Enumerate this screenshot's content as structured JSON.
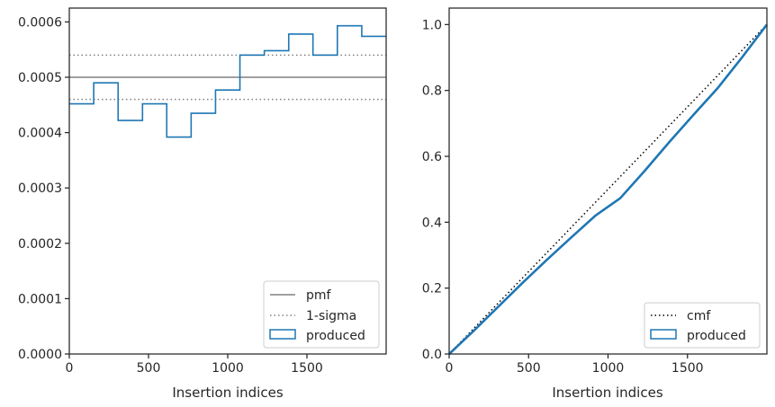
{
  "chart_data": [
    {
      "type": "line",
      "xlabel": "Insertion indices",
      "ylabel": "",
      "xlim": [
        0,
        2000
      ],
      "ylim": [
        0,
        0.000625
      ],
      "xticks": [
        0,
        500,
        1000,
        1500
      ],
      "xtick_labels": [
        "0",
        "500",
        "1000",
        "1500"
      ],
      "yticks": [
        0,
        0.0001,
        0.0002,
        0.0003,
        0.0004,
        0.0005,
        0.0006
      ],
      "ytick_labels": [
        "0.0000",
        "0.0001",
        "0.0002",
        "0.0003",
        "0.0004",
        "0.0005",
        "0.0006"
      ],
      "grid": false,
      "legend_position": "bottom-right",
      "pmf": 0.0005,
      "sigma_lines": [
        0.00046,
        0.00054
      ],
      "histogram": {
        "name": "produced",
        "bin_edges": [
          0,
          154,
          308,
          462,
          615,
          769,
          923,
          1077,
          1231,
          1385,
          1538,
          1692,
          1846,
          2000
        ],
        "values": [
          0.000452,
          0.00049,
          0.000422,
          0.000452,
          0.000392,
          0.000435,
          0.000477,
          0.00054,
          0.000548,
          0.000578,
          0.00054,
          0.000593,
          0.000574
        ]
      },
      "series": [
        {
          "name": "pmf",
          "style": "solid",
          "color": "#808080"
        },
        {
          "name": "1-sigma",
          "style": "dotted",
          "color": "#808080"
        },
        {
          "name": "produced",
          "style": "step",
          "color": "#1f77b4"
        }
      ]
    },
    {
      "type": "line",
      "xlabel": "Insertion indices",
      "ylabel": "",
      "xlim": [
        0,
        2000
      ],
      "ylim": [
        0,
        1.05
      ],
      "xticks": [
        0,
        500,
        1000,
        1500
      ],
      "xtick_labels": [
        "0",
        "500",
        "1000",
        "1500"
      ],
      "yticks": [
        0,
        0.2,
        0.4,
        0.6,
        0.8,
        1.0
      ],
      "ytick_labels": [
        "0.0",
        "0.2",
        "0.4",
        "0.6",
        "0.8",
        "1.0"
      ],
      "grid": false,
      "legend_position": "bottom-right",
      "series": [
        {
          "name": "cmf",
          "style": "dotted",
          "color": "#000000",
          "x": [
            0,
            2000
          ],
          "y": [
            0,
            1
          ]
        },
        {
          "name": "produced",
          "style": "step",
          "color": "#1f77b4",
          "x": [
            0,
            154,
            308,
            462,
            615,
            769,
            923,
            1077,
            1231,
            1385,
            1538,
            1692,
            1846,
            2000
          ],
          "y": [
            0,
            0.07,
            0.143,
            0.216,
            0.286,
            0.354,
            0.421,
            0.473,
            0.556,
            0.643,
            0.726,
            0.808,
            0.902,
            1.0
          ]
        }
      ]
    }
  ],
  "legend": {
    "left": [
      "pmf",
      "1-sigma",
      "produced"
    ],
    "right": [
      "cmf",
      "produced"
    ]
  },
  "colors": {
    "produced": "#1f77b4",
    "pmf": "#808080",
    "cmf": "#000000",
    "axes": "#262626"
  }
}
